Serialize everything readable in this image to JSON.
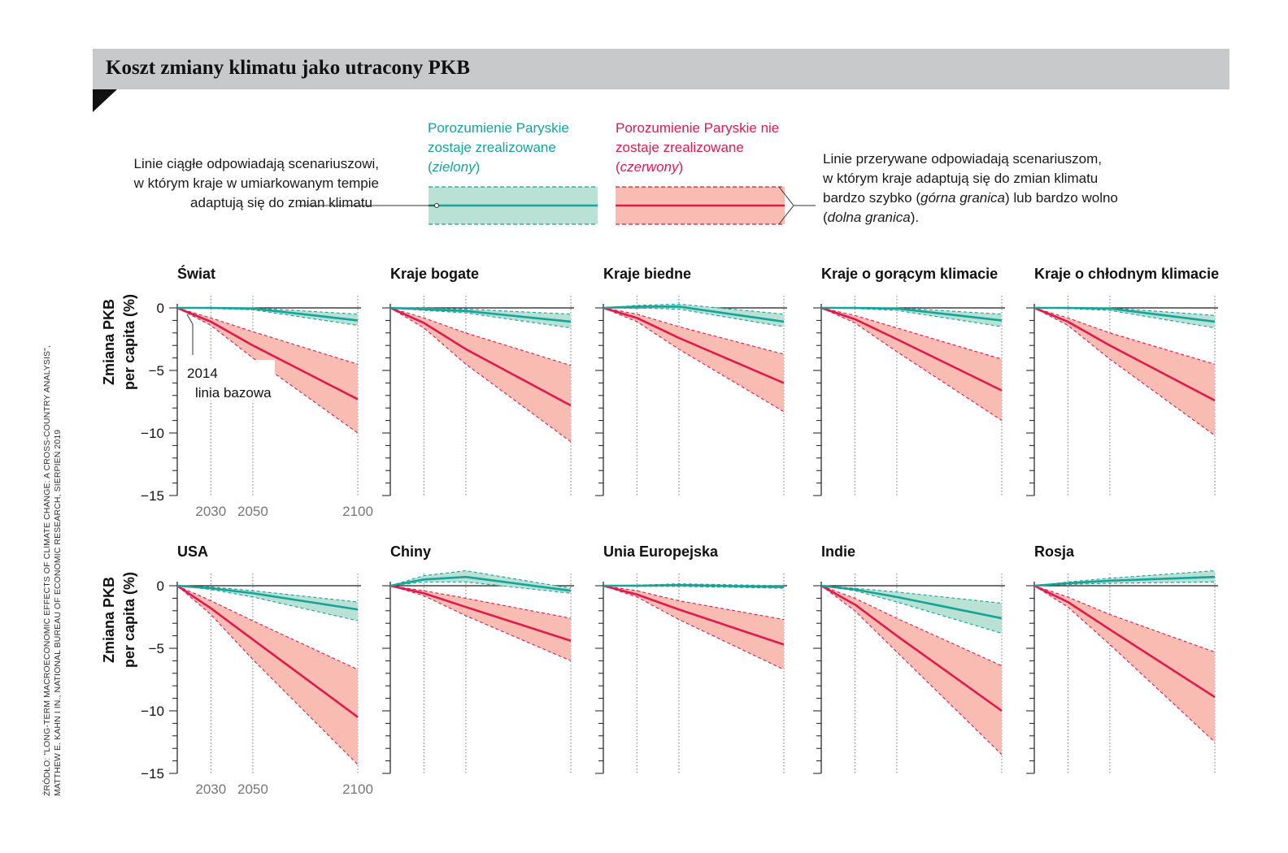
{
  "title": "Koszt zmiany klimatu jako utracony PKB",
  "legend": {
    "solid_text": [
      "Linie ciągłe odpowiadają scenariuszowi,",
      "w którym kraje w umiarkowanym tempie",
      "adaptują się do zmian klimatu"
    ],
    "green_label": [
      "Porozumienie Paryskie",
      "zostaje zrealizowane"
    ],
    "green_note": "zielony",
    "red_label": [
      "Porozumienie Paryskie nie",
      "zostaje zrealizowane"
    ],
    "red_note": "czerwony",
    "dashed_text_1": "Linie przerywane odpowiadają scenariuszom,",
    "dashed_text_2": "w którym kraje adaptują się do zmian klimatu",
    "dashed_text_3a": "bardzo szybko (",
    "dashed_text_3b": "górna granica",
    "dashed_text_3c": ") lub bardzo wolno",
    "dashed_text_4a": "dolna granica",
    "dashed_text_4b": ")."
  },
  "axis": {
    "ylabel_line1": "Zmiana PKB",
    "ylabel_line2": "per capita (%)",
    "yticks": [
      "0",
      "-5",
      "-10",
      "-15"
    ],
    "xticks": [
      "2030",
      "2050",
      "2100"
    ],
    "baseline_year": "2014",
    "baseline_label": "linia bazowa"
  },
  "colors": {
    "green": "#16a39a",
    "green_fill": "#b9e2d5",
    "red": "#e1194d",
    "red_fill": "#f8bcb2",
    "axis": "#1a1a1a",
    "title_bar": "#c8c9cb"
  },
  "source": {
    "line1": "ŹRÓDŁO: \"LONG-TERM MACROECONOMIC EFFECTS OF CLIMATE CHANGE: A CROSS-COUNTRY ANALYSIS\",",
    "line2": "MATTHEW E. KAHN I IN., NATIONAL BUREAU OF ECONOMIC RESEARCH, SIERPIEŃ 2019"
  },
  "chart_data": [
    {
      "type": "area",
      "title": "Świat",
      "x": [
        2014,
        2030,
        2050,
        2100
      ],
      "ylim": [
        -15,
        0
      ],
      "series": [
        {
          "name": "Porozumienie Paryskie zostaje zrealizowane",
          "values": [
            0,
            0,
            -0.05,
            -1.0
          ],
          "upper": [
            0,
            0,
            0,
            -0.5
          ],
          "lower": [
            0,
            -0.05,
            -0.15,
            -1.4
          ]
        },
        {
          "name": "Porozumienie Paryskie nie zostaje zrealizowane",
          "values": [
            0,
            -1.1,
            -3.0,
            -7.3
          ],
          "upper": [
            0,
            -0.8,
            -1.9,
            -4.5
          ],
          "lower": [
            0,
            -1.4,
            -4.0,
            -10.0
          ]
        }
      ]
    },
    {
      "type": "area",
      "title": "Kraje bogate",
      "x": [
        2014,
        2030,
        2050,
        2100
      ],
      "ylim": [
        -15,
        0
      ],
      "series": [
        {
          "name": "Porozumienie Paryskie zostaje zrealizowane",
          "values": [
            0,
            -0.1,
            -0.25,
            -1.1
          ],
          "upper": [
            0,
            0,
            -0.1,
            -0.5
          ],
          "lower": [
            0,
            -0.2,
            -0.4,
            -1.6
          ]
        },
        {
          "name": "Porozumienie Paryskie nie zostaje zrealizowane",
          "values": [
            0,
            -1.2,
            -3.3,
            -7.8
          ],
          "upper": [
            0,
            -0.8,
            -2.0,
            -4.6
          ],
          "lower": [
            0,
            -1.6,
            -4.5,
            -10.7
          ]
        }
      ]
    },
    {
      "type": "area",
      "title": "Kraje biedne",
      "x": [
        2014,
        2030,
        2050,
        2100
      ],
      "ylim": [
        -15,
        0
      ],
      "series": [
        {
          "name": "Porozumienie Paryskie zostaje zrealizowane",
          "values": [
            0,
            0.1,
            0.1,
            -1.1
          ],
          "upper": [
            0,
            0.2,
            0.3,
            -0.5
          ],
          "lower": [
            0,
            0,
            -0.1,
            -1.5
          ]
        },
        {
          "name": "Porozumienie Paryskie nie zostaje zrealizowane",
          "values": [
            0,
            -0.8,
            -2.4,
            -6.0
          ],
          "upper": [
            0,
            -0.5,
            -1.5,
            -3.7
          ],
          "lower": [
            0,
            -1.1,
            -3.3,
            -8.3
          ]
        }
      ]
    },
    {
      "type": "area",
      "title": "Kraje o gorącym klimacie",
      "x": [
        2014,
        2030,
        2050,
        2100
      ],
      "ylim": [
        -15,
        0
      ],
      "series": [
        {
          "name": "Porozumienie Paryskie zostaje zrealizowane",
          "values": [
            0,
            0,
            -0.05,
            -1.0
          ],
          "upper": [
            0,
            0,
            0,
            -0.5
          ],
          "lower": [
            0,
            -0.05,
            -0.2,
            -1.5
          ]
        },
        {
          "name": "Porozumienie Paryskie nie zostaje zrealizowane",
          "values": [
            0,
            -0.9,
            -2.5,
            -6.6
          ],
          "upper": [
            0,
            -0.6,
            -1.6,
            -4.1
          ],
          "lower": [
            0,
            -1.2,
            -3.5,
            -9.0
          ]
        }
      ]
    },
    {
      "type": "area",
      "title": "Kraje o chłodnym klimacie",
      "x": [
        2014,
        2030,
        2050,
        2100
      ],
      "ylim": [
        -15,
        0
      ],
      "series": [
        {
          "name": "Porozumienie Paryskie zostaje zrealizowane",
          "values": [
            0,
            0,
            -0.05,
            -1.1
          ],
          "upper": [
            0,
            0,
            0,
            -0.6
          ],
          "lower": [
            0,
            -0.05,
            -0.2,
            -1.6
          ]
        },
        {
          "name": "Porozumienie Paryskie nie zostaje zrealizowane",
          "values": [
            0,
            -1.1,
            -3.0,
            -7.4
          ],
          "upper": [
            0,
            -0.8,
            -2.0,
            -4.5
          ],
          "lower": [
            0,
            -1.4,
            -4.1,
            -10.2
          ]
        }
      ]
    },
    {
      "type": "area",
      "title": "USA",
      "x": [
        2014,
        2030,
        2050,
        2100
      ],
      "ylim": [
        -15,
        0
      ],
      "series": [
        {
          "name": "Porozumienie Paryskie zostaje zrealizowane",
          "values": [
            0,
            -0.2,
            -0.6,
            -1.9
          ],
          "upper": [
            0,
            -0.1,
            -0.4,
            -1.3
          ],
          "lower": [
            0,
            -0.3,
            -0.9,
            -2.8
          ]
        },
        {
          "name": "Porozumienie Paryskie nie zostaje zrealizowane",
          "values": [
            0,
            -1.8,
            -4.3,
            -10.5
          ],
          "upper": [
            0,
            -1.2,
            -2.8,
            -6.7
          ],
          "lower": [
            0,
            -2.3,
            -5.9,
            -14.3
          ]
        }
      ]
    },
    {
      "type": "area",
      "title": "Chiny",
      "x": [
        2014,
        2030,
        2050,
        2100
      ],
      "ylim": [
        -15,
        0
      ],
      "series": [
        {
          "name": "Porozumienie Paryskie zostaje zrealizowane",
          "values": [
            0,
            0.5,
            0.7,
            -0.4
          ],
          "upper": [
            0,
            0.8,
            1.2,
            -0.2
          ],
          "lower": [
            0,
            0.3,
            0.3,
            -0.6
          ]
        },
        {
          "name": "Porozumienie Paryskie nie zostaje zrealizowane",
          "values": [
            0,
            -0.6,
            -1.7,
            -4.4
          ],
          "upper": [
            0,
            -0.4,
            -1.0,
            -2.6
          ],
          "lower": [
            0,
            -0.8,
            -2.4,
            -6.0
          ]
        }
      ]
    },
    {
      "type": "area",
      "title": "Unia Europejska",
      "x": [
        2014,
        2030,
        2050,
        2100
      ],
      "ylim": [
        -15,
        0
      ],
      "series": [
        {
          "name": "Porozumienie Paryskie zostaje zrealizowane",
          "values": [
            0,
            0,
            0.05,
            -0.1
          ],
          "upper": [
            0,
            0.05,
            0.15,
            0
          ],
          "lower": [
            0,
            -0.05,
            -0.05,
            -0.2
          ]
        },
        {
          "name": "Porozumienie Paryskie nie zostaje zrealizowane",
          "values": [
            0,
            -0.7,
            -1.9,
            -4.7
          ],
          "upper": [
            0,
            -0.4,
            -1.2,
            -2.7
          ],
          "lower": [
            0,
            -0.9,
            -2.7,
            -6.7
          ]
        }
      ]
    },
    {
      "type": "area",
      "title": "Indie",
      "x": [
        2014,
        2030,
        2050,
        2100
      ],
      "ylim": [
        -15,
        0
      ],
      "series": [
        {
          "name": "Porozumienie Paryskie zostaje zrealizowane",
          "values": [
            0,
            -0.3,
            -0.9,
            -2.6
          ],
          "upper": [
            0,
            -0.2,
            -0.5,
            -1.4
          ],
          "lower": [
            0,
            -0.4,
            -1.3,
            -3.8
          ]
        },
        {
          "name": "Porozumienie Paryskie nie zostaje zrealizowane",
          "values": [
            0,
            -1.5,
            -4.0,
            -10.0
          ],
          "upper": [
            0,
            -1.0,
            -2.6,
            -6.4
          ],
          "lower": [
            0,
            -2.0,
            -5.3,
            -13.5
          ]
        }
      ]
    },
    {
      "type": "area",
      "title": "Rosja",
      "x": [
        2014,
        2030,
        2050,
        2100
      ],
      "ylim": [
        -15,
        0
      ],
      "series": [
        {
          "name": "Porozumienie Paryskie zostaje zrealizowane",
          "values": [
            0,
            0.2,
            0.4,
            0.7
          ],
          "upper": [
            0,
            0.3,
            0.6,
            1.2
          ],
          "lower": [
            0,
            0.1,
            0.2,
            0.3
          ]
        },
        {
          "name": "Porozumienie Paryskie nie zostaje zrealizowane",
          "values": [
            0,
            -1.3,
            -3.5,
            -8.9
          ],
          "upper": [
            0,
            -0.9,
            -2.3,
            -5.3
          ],
          "lower": [
            0,
            -1.7,
            -4.7,
            -12.5
          ]
        }
      ]
    }
  ]
}
